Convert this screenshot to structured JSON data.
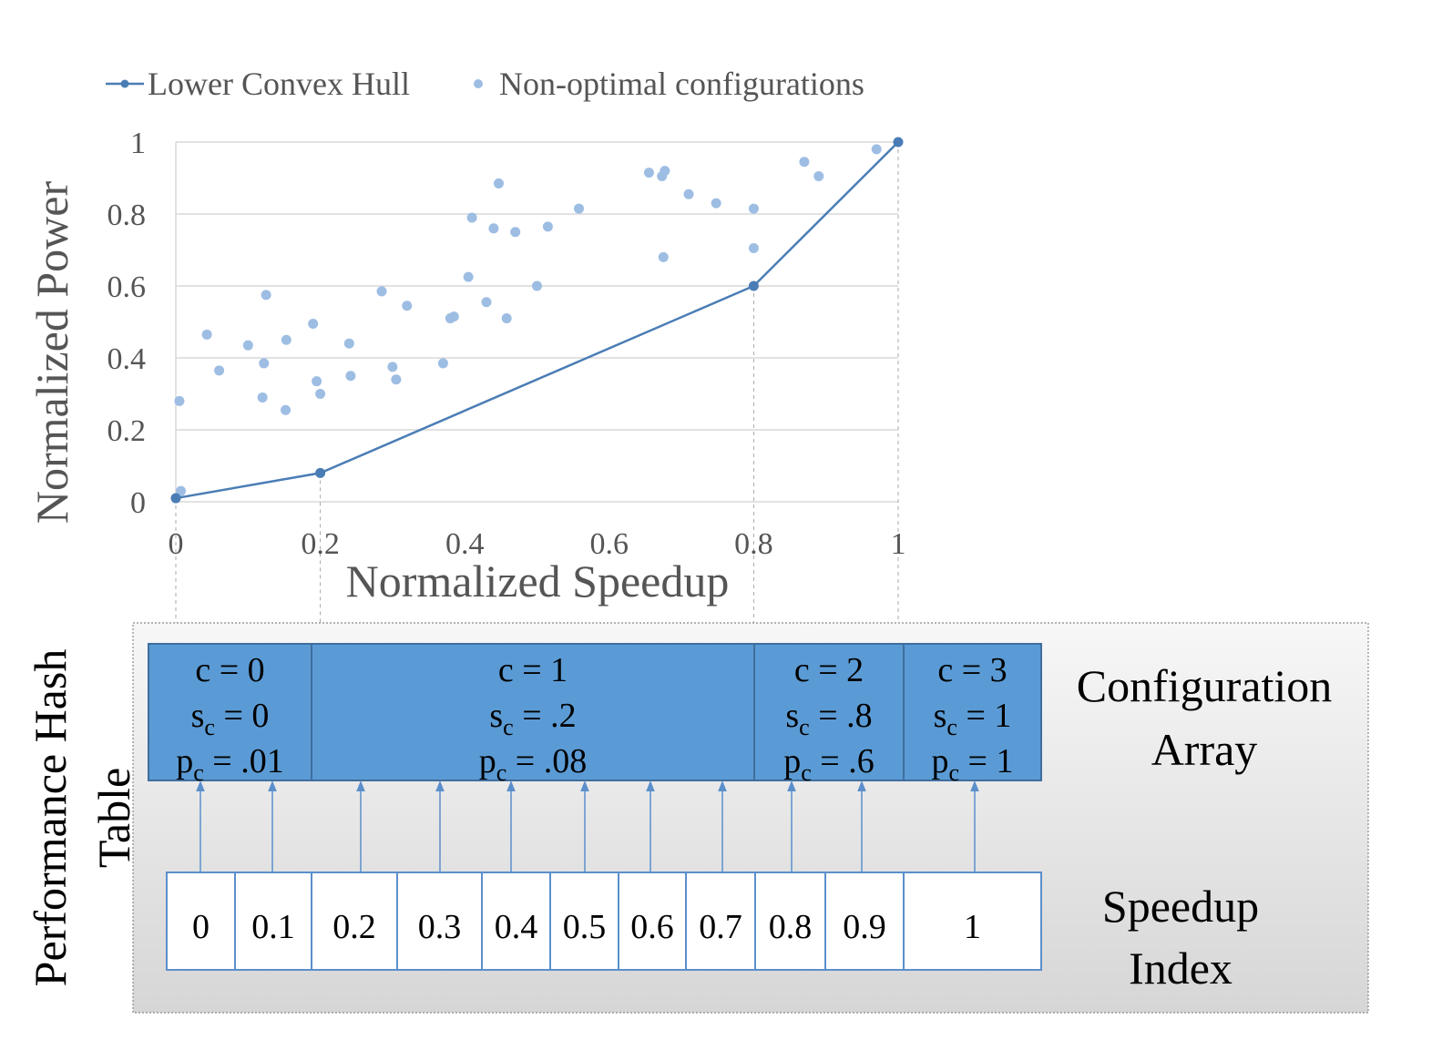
{
  "chart_data": {
    "type": "scatter",
    "xlabel": "Normalized Speedup",
    "ylabel": "Normalized Power",
    "xlim": [
      0,
      1
    ],
    "ylim": [
      0,
      1
    ],
    "x_ticks": [
      "0",
      "0.2",
      "0.4",
      "0.6",
      "0.8",
      "1"
    ],
    "y_ticks": [
      "0",
      "0.2",
      "0.4",
      "0.6",
      "0.8",
      "1"
    ],
    "grid": "horizontal",
    "legend_position": "top",
    "series": [
      {
        "name": "Lower Convex Hull",
        "kind": "line",
        "color": "#4a7db5",
        "points": [
          [
            0,
            0.01
          ],
          [
            0.2,
            0.08
          ],
          [
            0.8,
            0.6
          ],
          [
            1,
            1
          ]
        ]
      },
      {
        "name": "Non-optimal configurations",
        "kind": "scatter",
        "color": "#9dbde3",
        "points": [
          [
            0.005,
            0.28
          ],
          [
            0.007,
            0.03
          ],
          [
            0.043,
            0.465
          ],
          [
            0.06,
            0.365
          ],
          [
            0.1,
            0.435
          ],
          [
            0.12,
            0.29
          ],
          [
            0.122,
            0.385
          ],
          [
            0.125,
            0.575
          ],
          [
            0.152,
            0.255
          ],
          [
            0.153,
            0.45
          ],
          [
            0.19,
            0.495
          ],
          [
            0.195,
            0.335
          ],
          [
            0.2,
            0.3
          ],
          [
            0.24,
            0.44
          ],
          [
            0.242,
            0.35
          ],
          [
            0.285,
            0.585
          ],
          [
            0.3,
            0.375
          ],
          [
            0.305,
            0.34
          ],
          [
            0.32,
            0.545
          ],
          [
            0.37,
            0.385
          ],
          [
            0.38,
            0.51
          ],
          [
            0.385,
            0.515
          ],
          [
            0.405,
            0.625
          ],
          [
            0.41,
            0.79
          ],
          [
            0.43,
            0.555
          ],
          [
            0.44,
            0.76
          ],
          [
            0.447,
            0.885
          ],
          [
            0.458,
            0.51
          ],
          [
            0.47,
            0.75
          ],
          [
            0.5,
            0.6
          ],
          [
            0.515,
            0.765
          ],
          [
            0.558,
            0.815
          ],
          [
            0.655,
            0.915
          ],
          [
            0.673,
            0.905
          ],
          [
            0.675,
            0.68
          ],
          [
            0.677,
            0.92
          ],
          [
            0.71,
            0.855
          ],
          [
            0.748,
            0.83
          ],
          [
            0.8,
            0.815
          ],
          [
            0.8,
            0.705
          ],
          [
            0.87,
            0.945
          ],
          [
            0.89,
            0.905
          ],
          [
            0.97,
            0.98
          ]
        ]
      }
    ]
  },
  "diagram": {
    "side_label_line1": "Performance Hash",
    "side_label_line2": "Table",
    "config_array_label_line1": "Configuration",
    "config_array_label_line2": "Array",
    "speedup_index_label_line1": "Speedup",
    "speedup_index_label_line2": "Index",
    "configurations": [
      {
        "c": "c = 0",
        "s": "= 0",
        "p": "= .01"
      },
      {
        "c": "c = 1",
        "s": "= .2",
        "p": "= .08"
      },
      {
        "c": "c = 2",
        "s": "= .8",
        "p": "= .6"
      },
      {
        "c": "c = 3",
        "s": "= 1",
        "p": "= 1"
      }
    ],
    "s_prefix": "s",
    "p_prefix": "p",
    "subscript": "c",
    "speedup_indices": [
      "0",
      "0.1",
      "0.2",
      "0.3",
      "0.4",
      "0.5",
      "0.6",
      "0.7",
      "0.8",
      "0.9",
      "1"
    ],
    "index_to_config": [
      0,
      0,
      1,
      1,
      1,
      1,
      1,
      1,
      2,
      2,
      3
    ],
    "colors": {
      "config_fill": "#5b9bd5",
      "config_border": "#3e6e9e",
      "arrow": "#5b8fcc",
      "panel_border": "#888888"
    }
  }
}
